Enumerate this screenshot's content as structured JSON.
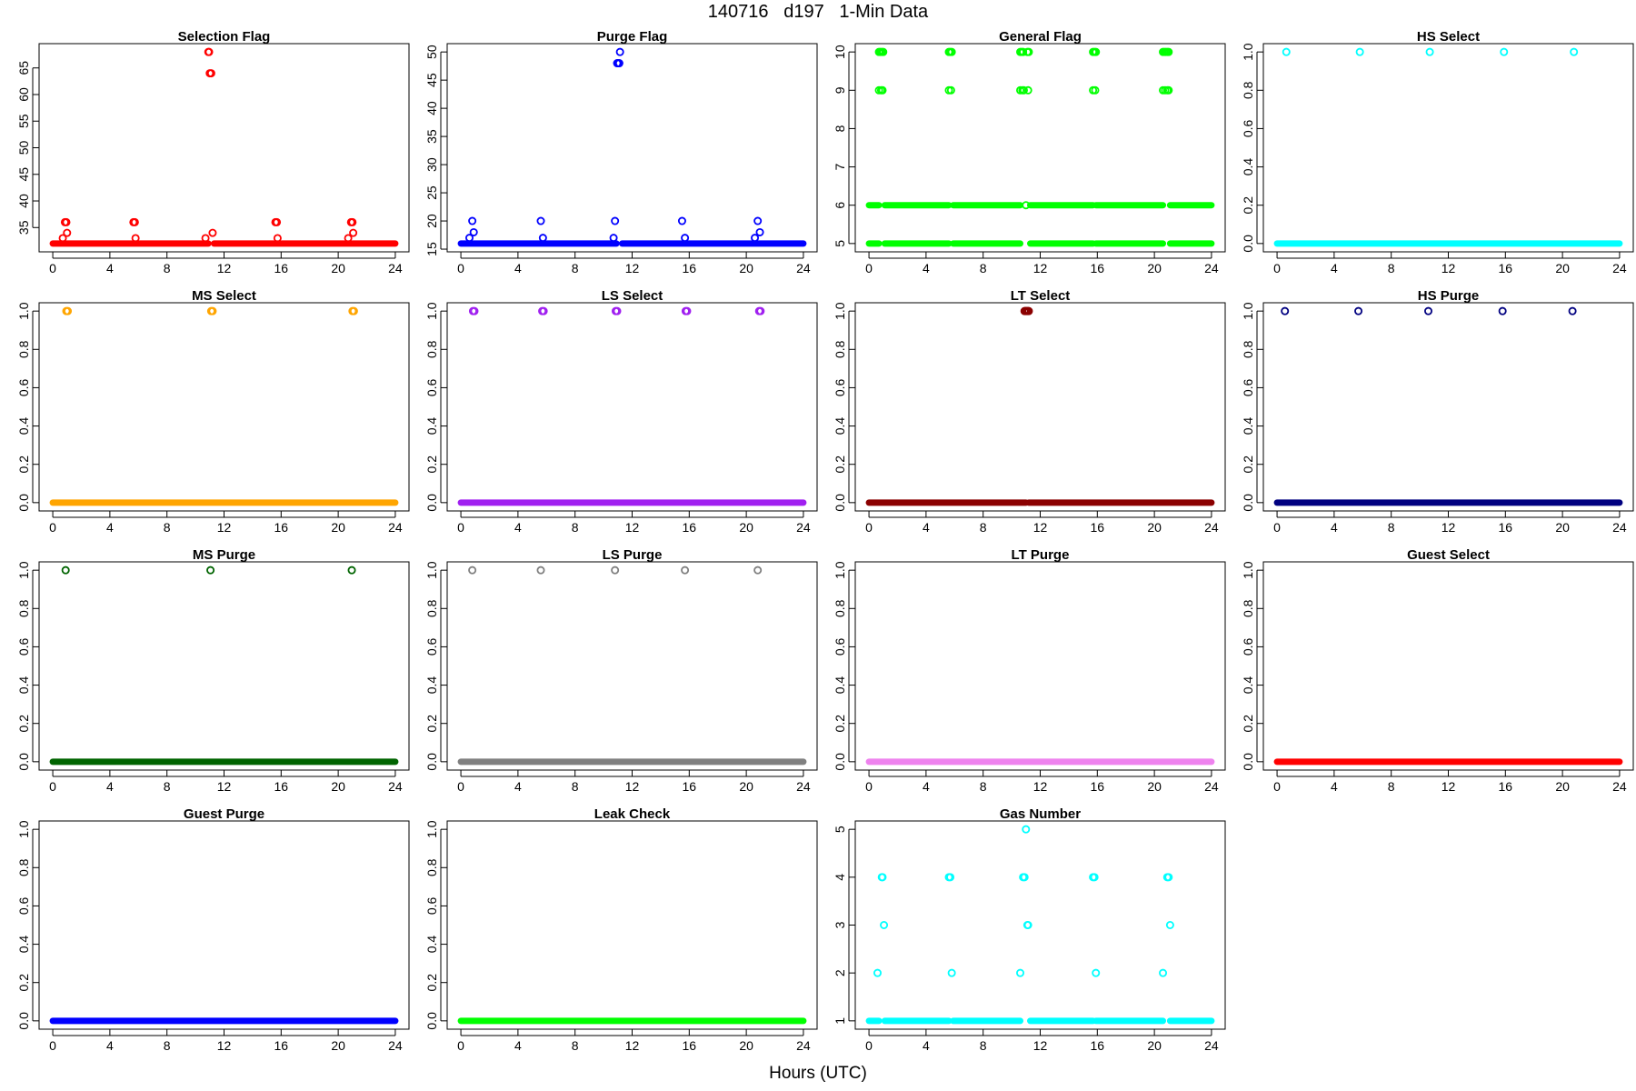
{
  "title": "140716   d197   1-Min Data",
  "xlabel": "Hours (UTC)",
  "chart_data": [
    {
      "type": "scatter",
      "title": "Selection Flag",
      "color": "#ff0000",
      "ylim": [
        32,
        68
      ],
      "yticks": [
        35,
        40,
        45,
        50,
        55,
        60,
        65
      ],
      "xticks": [
        0,
        4,
        8,
        12,
        16,
        20,
        24
      ],
      "xlim": [
        0,
        24
      ],
      "baseline": {
        "value": 32,
        "segments": [
          [
            0,
            10.9
          ],
          [
            11.3,
            24
          ]
        ]
      },
      "points": [
        [
          0.7,
          33
        ],
        [
          0.85,
          36
        ],
        [
          0.95,
          36
        ],
        [
          1.0,
          34
        ],
        [
          5.65,
          36
        ],
        [
          5.75,
          36
        ],
        [
          5.8,
          33
        ],
        [
          10.7,
          33
        ],
        [
          10.9,
          68
        ],
        [
          10.95,
          68
        ],
        [
          11.0,
          64
        ],
        [
          11.1,
          64
        ],
        [
          11.2,
          34
        ],
        [
          15.6,
          36
        ],
        [
          15.7,
          36
        ],
        [
          15.75,
          33
        ],
        [
          20.7,
          33
        ],
        [
          20.9,
          36
        ],
        [
          21.0,
          36
        ],
        [
          21.05,
          34
        ]
      ]
    },
    {
      "type": "scatter",
      "title": "Purge Flag",
      "color": "#0000ff",
      "ylim": [
        16,
        50
      ],
      "yticks": [
        15,
        20,
        25,
        30,
        35,
        40,
        45,
        50
      ],
      "xticks": [
        0,
        4,
        8,
        12,
        16,
        20,
        24
      ],
      "xlim": [
        0,
        24
      ],
      "baseline": {
        "value": 16,
        "segments": [
          [
            0,
            10.9
          ],
          [
            11.3,
            24
          ]
        ]
      },
      "points": [
        [
          0.6,
          17
        ],
        [
          0.8,
          20
        ],
        [
          0.9,
          18
        ],
        [
          5.6,
          20
        ],
        [
          5.75,
          17
        ],
        [
          10.7,
          17
        ],
        [
          10.8,
          20
        ],
        [
          10.95,
          48
        ],
        [
          11.0,
          48
        ],
        [
          11.05,
          48
        ],
        [
          11.1,
          48
        ],
        [
          11.15,
          50
        ],
        [
          15.5,
          20
        ],
        [
          15.7,
          17
        ],
        [
          20.6,
          17
        ],
        [
          20.8,
          20
        ],
        [
          20.95,
          18
        ]
      ]
    },
    {
      "type": "scatter",
      "title": "General Flag",
      "color": "#00ff00",
      "ylim": [
        5,
        10
      ],
      "yticks": [
        5,
        6,
        7,
        8,
        9,
        10
      ],
      "xticks": [
        0,
        4,
        8,
        12,
        16,
        20,
        24
      ],
      "xlim": [
        0,
        24
      ],
      "baseline": {
        "value": 5,
        "segments": [
          [
            0,
            0.7
          ],
          [
            1.1,
            5.6
          ],
          [
            5.9,
            10.6
          ],
          [
            11.3,
            15.7
          ],
          [
            15.9,
            20.6
          ],
          [
            21.1,
            24
          ]
        ]
      },
      "bands": [
        {
          "value": 6,
          "segments": [
            [
              0,
              0.7
            ],
            [
              1.1,
              5.6
            ],
            [
              5.9,
              10.6
            ],
            [
              11.3,
              15.7
            ],
            [
              15.9,
              20.6
            ],
            [
              21.1,
              24
            ]
          ]
        }
      ],
      "points": [
        [
          0.7,
          10
        ],
        [
          0.8,
          10
        ],
        [
          0.9,
          10
        ],
        [
          1.0,
          10
        ],
        [
          0.7,
          9
        ],
        [
          0.85,
          9
        ],
        [
          0.95,
          9
        ],
        [
          5.6,
          10
        ],
        [
          5.7,
          10
        ],
        [
          5.8,
          10
        ],
        [
          5.6,
          9
        ],
        [
          5.75,
          9
        ],
        [
          10.6,
          10
        ],
        [
          10.7,
          10
        ],
        [
          10.8,
          10
        ],
        [
          10.6,
          9
        ],
        [
          10.75,
          9
        ],
        [
          10.85,
          9
        ],
        [
          11.1,
          10
        ],
        [
          11.2,
          10
        ],
        [
          11.15,
          9
        ],
        [
          11.0,
          6
        ],
        [
          15.7,
          10
        ],
        [
          15.8,
          10
        ],
        [
          15.9,
          10
        ],
        [
          15.7,
          9
        ],
        [
          15.85,
          9
        ],
        [
          20.6,
          10
        ],
        [
          20.7,
          10
        ],
        [
          20.8,
          10
        ],
        [
          20.9,
          10
        ],
        [
          21.0,
          10
        ],
        [
          20.6,
          9
        ],
        [
          20.75,
          9
        ],
        [
          20.9,
          9
        ],
        [
          21.0,
          9
        ]
      ]
    },
    {
      "type": "scatter",
      "title": "HS Select",
      "color": "#00ffff",
      "ylim": [
        0,
        1
      ],
      "yticks": [
        0.0,
        0.2,
        0.4,
        0.6,
        0.8,
        1.0
      ],
      "xticks": [
        0,
        4,
        8,
        12,
        16,
        20,
        24
      ],
      "xlim": [
        0,
        24
      ],
      "baseline": {
        "value": 0,
        "segments": [
          [
            0,
            24
          ]
        ]
      },
      "points": [
        [
          0.65,
          1
        ],
        [
          5.8,
          1
        ],
        [
          10.7,
          1
        ],
        [
          15.9,
          1
        ],
        [
          20.8,
          1
        ]
      ]
    },
    {
      "type": "scatter",
      "title": "MS Select",
      "color": "#ffa500",
      "ylim": [
        0,
        1
      ],
      "yticks": [
        0.0,
        0.2,
        0.4,
        0.6,
        0.8,
        1.0
      ],
      "xticks": [
        0,
        4,
        8,
        12,
        16,
        20,
        24
      ],
      "xlim": [
        0,
        24
      ],
      "baseline": {
        "value": 0,
        "segments": [
          [
            0,
            24
          ]
        ]
      },
      "points": [
        [
          0.95,
          1
        ],
        [
          1.05,
          1
        ],
        [
          11.1,
          1
        ],
        [
          11.2,
          1
        ],
        [
          21.0,
          1
        ],
        [
          21.1,
          1
        ]
      ]
    },
    {
      "type": "scatter",
      "title": "LS Select",
      "color": "#a020f0",
      "ylim": [
        0,
        1
      ],
      "yticks": [
        0.0,
        0.2,
        0.4,
        0.6,
        0.8,
        1.0
      ],
      "xticks": [
        0,
        4,
        8,
        12,
        16,
        20,
        24
      ],
      "xlim": [
        0,
        24
      ],
      "baseline": {
        "value": 0,
        "segments": [
          [
            0,
            24
          ]
        ]
      },
      "points": [
        [
          0.85,
          1
        ],
        [
          0.95,
          1
        ],
        [
          5.7,
          1
        ],
        [
          5.8,
          1
        ],
        [
          10.85,
          1
        ],
        [
          10.95,
          1
        ],
        [
          15.75,
          1
        ],
        [
          15.85,
          1
        ],
        [
          20.9,
          1
        ],
        [
          21.0,
          1
        ]
      ]
    },
    {
      "type": "scatter",
      "title": "LT Select",
      "color": "#8b0000",
      "ylim": [
        0,
        1
      ],
      "yticks": [
        0.0,
        0.2,
        0.4,
        0.6,
        0.8,
        1.0
      ],
      "xticks": [
        0,
        4,
        8,
        12,
        16,
        20,
        24
      ],
      "xlim": [
        0,
        24
      ],
      "baseline": {
        "value": 0,
        "segments": [
          [
            0,
            11.0
          ],
          [
            11.2,
            24
          ]
        ]
      },
      "points": [
        [
          10.9,
          1
        ],
        [
          10.95,
          1
        ],
        [
          11.0,
          1
        ],
        [
          11.05,
          1
        ],
        [
          11.1,
          1
        ],
        [
          11.15,
          1
        ],
        [
          11.2,
          1
        ]
      ]
    },
    {
      "type": "scatter",
      "title": "HS Purge",
      "color": "#000080",
      "ylim": [
        0,
        1
      ],
      "yticks": [
        0.0,
        0.2,
        0.4,
        0.6,
        0.8,
        1.0
      ],
      "xticks": [
        0,
        4,
        8,
        12,
        16,
        20,
        24
      ],
      "xlim": [
        0,
        24
      ],
      "baseline": {
        "value": 0,
        "segments": [
          [
            0,
            24
          ]
        ]
      },
      "points": [
        [
          0.55,
          1
        ],
        [
          5.7,
          1
        ],
        [
          10.6,
          1
        ],
        [
          15.8,
          1
        ],
        [
          20.7,
          1
        ]
      ]
    },
    {
      "type": "scatter",
      "title": "MS Purge",
      "color": "#006400",
      "ylim": [
        0,
        1
      ],
      "yticks": [
        0.0,
        0.2,
        0.4,
        0.6,
        0.8,
        1.0
      ],
      "xticks": [
        0,
        4,
        8,
        12,
        16,
        20,
        24
      ],
      "xlim": [
        0,
        24
      ],
      "baseline": {
        "value": 0,
        "segments": [
          [
            0,
            24
          ]
        ]
      },
      "points": [
        [
          0.9,
          1
        ],
        [
          11.05,
          1
        ],
        [
          20.95,
          1
        ]
      ]
    },
    {
      "type": "scatter",
      "title": "LS Purge",
      "color": "#808080",
      "ylim": [
        0,
        1
      ],
      "yticks": [
        0.0,
        0.2,
        0.4,
        0.6,
        0.8,
        1.0
      ],
      "xticks": [
        0,
        4,
        8,
        12,
        16,
        20,
        24
      ],
      "xlim": [
        0,
        24
      ],
      "baseline": {
        "value": 0,
        "segments": [
          [
            0,
            24
          ]
        ]
      },
      "points": [
        [
          0.8,
          1
        ],
        [
          5.6,
          1
        ],
        [
          10.8,
          1
        ],
        [
          15.7,
          1
        ],
        [
          20.8,
          1
        ]
      ]
    },
    {
      "type": "scatter",
      "title": "LT Purge",
      "color": "#ee82ee",
      "ylim": [
        0,
        1
      ],
      "yticks": [
        0.0,
        0.2,
        0.4,
        0.6,
        0.8,
        1.0
      ],
      "xticks": [
        0,
        4,
        8,
        12,
        16,
        20,
        24
      ],
      "xlim": [
        0,
        24
      ],
      "baseline": {
        "value": 0,
        "segments": [
          [
            0,
            24
          ]
        ]
      },
      "points": []
    },
    {
      "type": "scatter",
      "title": "Guest Select",
      "color": "#ff0000",
      "ylim": [
        0,
        1
      ],
      "yticks": [
        0.0,
        0.2,
        0.4,
        0.6,
        0.8,
        1.0
      ],
      "xticks": [
        0,
        4,
        8,
        12,
        16,
        20,
        24
      ],
      "xlim": [
        0,
        24
      ],
      "baseline": {
        "value": 0,
        "segments": [
          [
            0,
            24
          ]
        ]
      },
      "points": []
    },
    {
      "type": "scatter",
      "title": "Guest Purge",
      "color": "#0000ff",
      "ylim": [
        0,
        1
      ],
      "yticks": [
        0.0,
        0.2,
        0.4,
        0.6,
        0.8,
        1.0
      ],
      "xticks": [
        0,
        4,
        8,
        12,
        16,
        20,
        24
      ],
      "xlim": [
        0,
        24
      ],
      "baseline": {
        "value": 0,
        "segments": [
          [
            0,
            24
          ]
        ]
      },
      "points": []
    },
    {
      "type": "scatter",
      "title": "Leak Check",
      "color": "#00ff00",
      "ylim": [
        0,
        1
      ],
      "yticks": [
        0.0,
        0.2,
        0.4,
        0.6,
        0.8,
        1.0
      ],
      "xticks": [
        0,
        4,
        8,
        12,
        16,
        20,
        24
      ],
      "xlim": [
        0,
        24
      ],
      "baseline": {
        "value": 0,
        "segments": [
          [
            0,
            24
          ]
        ]
      },
      "points": []
    },
    {
      "type": "scatter",
      "title": "Gas Number",
      "color": "#00ffff",
      "ylim": [
        1,
        5
      ],
      "yticks": [
        1,
        2,
        3,
        4,
        5
      ],
      "xticks": [
        0,
        4,
        8,
        12,
        16,
        20,
        24
      ],
      "xlim": [
        0,
        24
      ],
      "baseline": {
        "value": 1,
        "segments": [
          [
            0,
            0.7
          ],
          [
            1.1,
            5.6
          ],
          [
            5.9,
            10.6
          ],
          [
            11.3,
            15.7
          ],
          [
            15.9,
            20.6
          ],
          [
            21.1,
            24
          ]
        ]
      },
      "points": [
        [
          0.6,
          2
        ],
        [
          0.9,
          4
        ],
        [
          0.95,
          4
        ],
        [
          1.05,
          3
        ],
        [
          5.6,
          4
        ],
        [
          5.7,
          4
        ],
        [
          5.8,
          2
        ],
        [
          10.6,
          2
        ],
        [
          10.8,
          4
        ],
        [
          10.9,
          4
        ],
        [
          11.0,
          5
        ],
        [
          11.1,
          3
        ],
        [
          11.15,
          3
        ],
        [
          15.7,
          4
        ],
        [
          15.8,
          4
        ],
        [
          15.9,
          2
        ],
        [
          20.6,
          2
        ],
        [
          20.9,
          4
        ],
        [
          21.0,
          4
        ],
        [
          21.1,
          3
        ]
      ]
    }
  ]
}
